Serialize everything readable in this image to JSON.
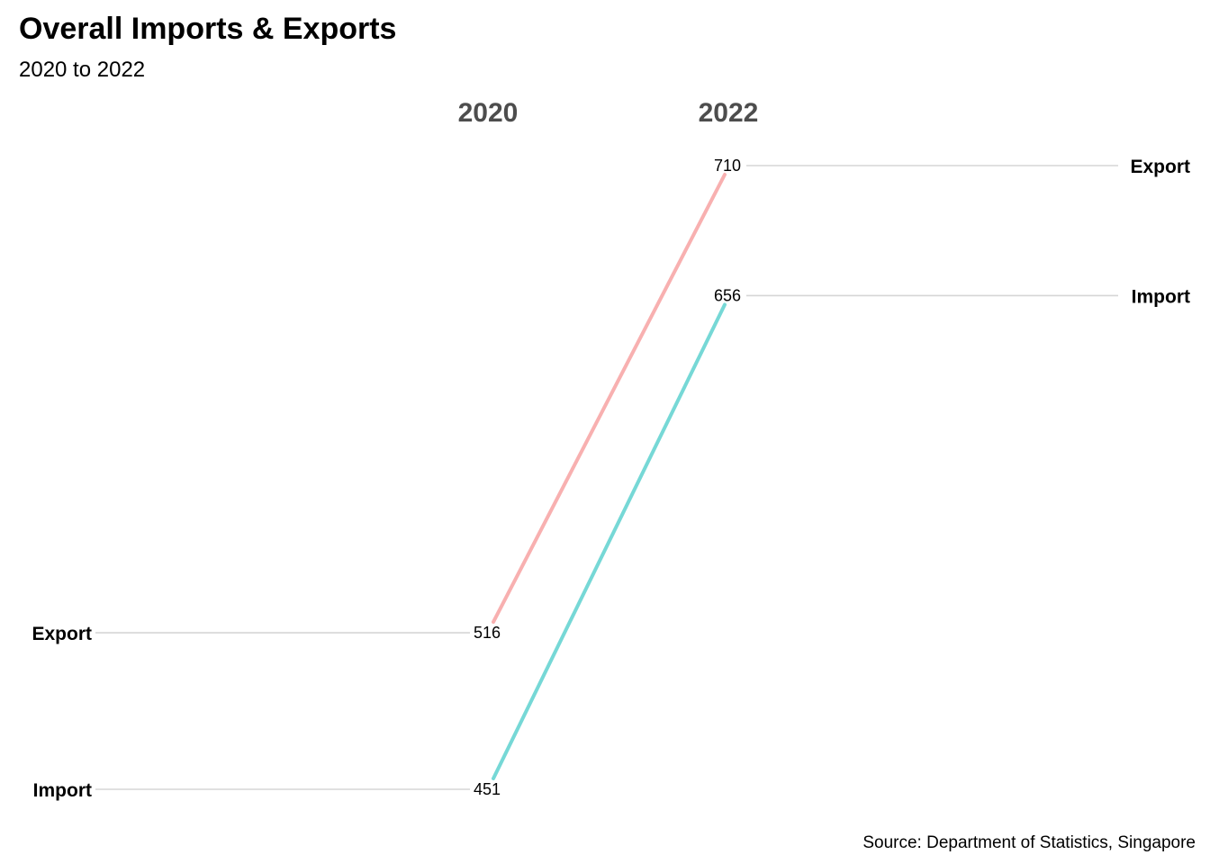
{
  "chart_data": {
    "type": "line",
    "style": "slope",
    "title": "Overall Imports & Exports",
    "subtitle": "2020 to 2022",
    "caption": "Source: Department of Statistics, Singapore",
    "x": [
      "2020",
      "2022"
    ],
    "series": [
      {
        "name": "Export",
        "values": [
          516,
          710
        ],
        "color": "#f8b0b0"
      },
      {
        "name": "Import",
        "values": [
          451,
          656
        ],
        "color": "#76d8d6"
      }
    ],
    "ylim": [
      451,
      710
    ],
    "grid": false,
    "legend": "none",
    "leader_color": "#d6d6d6",
    "header_color": "#4d4d4d"
  }
}
